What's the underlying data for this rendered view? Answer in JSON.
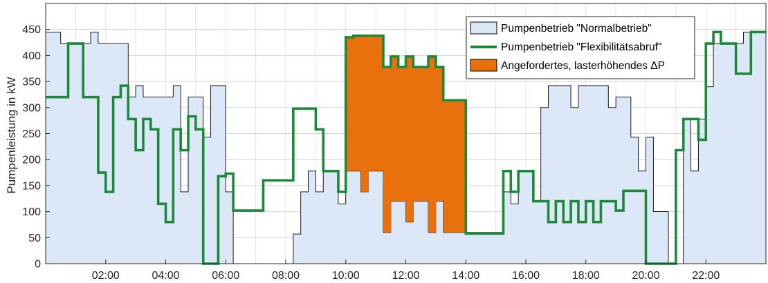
{
  "chart_data": {
    "type": "area",
    "ylabel": "Pumpenleistung in kW",
    "xlabel": "",
    "xlim": [
      0,
      24
    ],
    "ylim": [
      0,
      500
    ],
    "yticks": [
      0,
      50,
      100,
      150,
      200,
      250,
      300,
      350,
      400,
      450
    ],
    "xticks": [
      2,
      4,
      6,
      8,
      10,
      12,
      14,
      16,
      18,
      20,
      22
    ],
    "xtick_labels": [
      "02:00",
      "04:00",
      "06:00",
      "08:00",
      "10:00",
      "12:00",
      "14:00",
      "16:00",
      "18:00",
      "20:00",
      "22:00"
    ],
    "grid": true,
    "legend_position": "top-right",
    "colors": {
      "normal_fill": "#dce8f8",
      "normal_edge": "#000000",
      "flex_line": "#1a8a3a",
      "delta_fill": "#e8700d"
    },
    "series": [
      {
        "name": "Pumpenbetrieb \"Normalbetrieb\"",
        "kind": "filled-stairs",
        "steps": [
          [
            0,
            445
          ],
          [
            0.5,
            423
          ],
          [
            1.5,
            445
          ],
          [
            1.75,
            423
          ],
          [
            2.75,
            320
          ],
          [
            3,
            342
          ],
          [
            3.25,
            320
          ],
          [
            4.25,
            342
          ],
          [
            4.5,
            138
          ],
          [
            4.75,
            320
          ],
          [
            5.25,
            243
          ],
          [
            5.5,
            342
          ],
          [
            6,
            138
          ],
          [
            6.25,
            0
          ],
          [
            8.25,
            57
          ],
          [
            8.5,
            138
          ],
          [
            8.75,
            178
          ],
          [
            9,
            138
          ],
          [
            9.25,
            178
          ],
          [
            9.5,
            178
          ],
          [
            9.75,
            115
          ],
          [
            10,
            178
          ],
          [
            10.5,
            138
          ],
          [
            10.75,
            178
          ],
          [
            11.25,
            60
          ],
          [
            11.5,
            120
          ],
          [
            12,
            80
          ],
          [
            12.25,
            120
          ],
          [
            12.75,
            60
          ],
          [
            13,
            120
          ],
          [
            13.25,
            60
          ],
          [
            14,
            60
          ],
          [
            15.25,
            138
          ],
          [
            15.5,
            115
          ],
          [
            15.75,
            178
          ],
          [
            16.25,
            120
          ],
          [
            16.5,
            300
          ],
          [
            16.75,
            342
          ],
          [
            17.5,
            300
          ],
          [
            17.75,
            342
          ],
          [
            18.75,
            300
          ],
          [
            19,
            320
          ],
          [
            19.5,
            243
          ],
          [
            19.75,
            178
          ],
          [
            20,
            243
          ],
          [
            20.25,
            100
          ],
          [
            20.75,
            0
          ],
          [
            21.25,
            278
          ],
          [
            21.5,
            178
          ],
          [
            21.75,
            278
          ],
          [
            22,
            340
          ],
          [
            22.25,
            423
          ],
          [
            22.75,
            423
          ],
          [
            23.25,
            445
          ],
          [
            24,
            445
          ]
        ]
      },
      {
        "name": "Pumpenbetrieb \"Flexibilitätsabruf\"",
        "kind": "stairs-line",
        "steps": [
          [
            0,
            320
          ],
          [
            0.75,
            423
          ],
          [
            1.25,
            320
          ],
          [
            1.75,
            175
          ],
          [
            2,
            138
          ],
          [
            2.25,
            320
          ],
          [
            2.5,
            342
          ],
          [
            2.75,
            278
          ],
          [
            3,
            218
          ],
          [
            3.25,
            278
          ],
          [
            3.5,
            258
          ],
          [
            3.75,
            115
          ],
          [
            4,
            80
          ],
          [
            4.25,
            258
          ],
          [
            4.5,
            218
          ],
          [
            4.75,
            283
          ],
          [
            5,
            258
          ],
          [
            5.25,
            0
          ],
          [
            5.75,
            168
          ],
          [
            6,
            173
          ],
          [
            6.25,
            102
          ],
          [
            7,
            102
          ],
          [
            7.25,
            160
          ],
          [
            8,
            160
          ],
          [
            8.25,
            298
          ],
          [
            8.75,
            298
          ],
          [
            9,
            258
          ],
          [
            9.25,
            178
          ],
          [
            9.75,
            138
          ],
          [
            10,
            435
          ],
          [
            10.25,
            438
          ],
          [
            10.75,
            438
          ],
          [
            11,
            438
          ],
          [
            11.25,
            378
          ],
          [
            11.5,
            398
          ],
          [
            11.75,
            378
          ],
          [
            12,
            398
          ],
          [
            12.25,
            378
          ],
          [
            12.5,
            378
          ],
          [
            12.75,
            398
          ],
          [
            13,
            378
          ],
          [
            13.25,
            314
          ],
          [
            14,
            58
          ],
          [
            15.25,
            178
          ],
          [
            15.5,
            138
          ],
          [
            15.75,
            178
          ],
          [
            16.25,
            120
          ],
          [
            16.5,
            120
          ],
          [
            16.75,
            80
          ],
          [
            17,
            120
          ],
          [
            17.25,
            80
          ],
          [
            17.5,
            120
          ],
          [
            17.75,
            80
          ],
          [
            18,
            120
          ],
          [
            18.25,
            80
          ],
          [
            18.5,
            120
          ],
          [
            19,
            102
          ],
          [
            19.25,
            140
          ],
          [
            20,
            0
          ],
          [
            20.75,
            0
          ],
          [
            21,
            218
          ],
          [
            21.25,
            278
          ],
          [
            21.75,
            238
          ],
          [
            22,
            423
          ],
          [
            22.25,
            445
          ],
          [
            22.5,
            423
          ],
          [
            23,
            365
          ],
          [
            23.5,
            445
          ],
          [
            24,
            445
          ]
        ]
      },
      {
        "name": "Angefordertes, lasterhöhendes ΔP",
        "kind": "filled-between",
        "range": [
          10,
          14
        ]
      }
    ]
  }
}
